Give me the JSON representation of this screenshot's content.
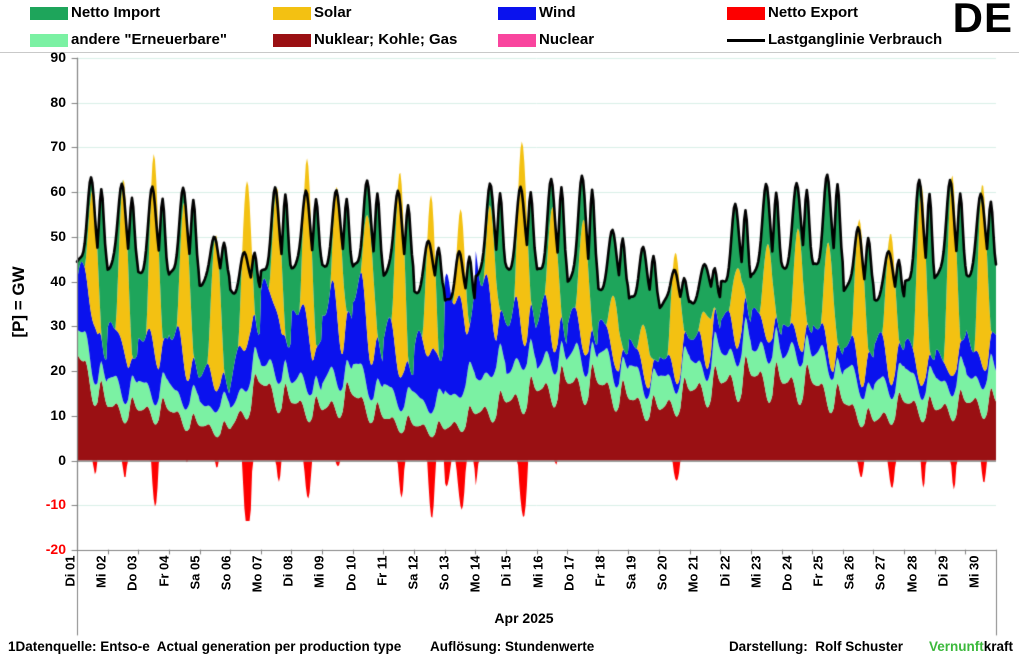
{
  "header": {
    "country_label": "DE"
  },
  "legend": {
    "items": [
      {
        "label": "Netto Import",
        "color": "#1ea55b",
        "type": "box"
      },
      {
        "label": "Solar",
        "color": "#f3c112",
        "type": "box"
      },
      {
        "label": "Wind",
        "color": "#0a12ee",
        "type": "box"
      },
      {
        "label": "Netto Export",
        "color": "#fd0000",
        "type": "box"
      },
      {
        "label": "andere \"Erneuerbare\"",
        "color": "#7bf1a3",
        "type": "box"
      },
      {
        "label": "Nuklear; Kohle; Gas",
        "color": "#9a1013",
        "type": "box"
      },
      {
        "label": "Nuclear",
        "color": "#f9459e",
        "type": "box"
      },
      {
        "label": "Lastganglinie Verbrauch",
        "color": "#000000",
        "type": "line"
      }
    ]
  },
  "chart_data": {
    "type": "area",
    "stacked": true,
    "resolution": "Stundenwerte (hourly values, synthesized from daily estimates read off the plot)",
    "xlabel": "Apr 2025",
    "ylabel": "[P] = GW",
    "ylim": [
      -20,
      90
    ],
    "yticks": [
      90,
      80,
      70,
      60,
      50,
      40,
      30,
      20,
      10,
      0,
      -10,
      -20
    ],
    "grid": true,
    "legend_position": "top",
    "grid_color": "#d9efe7",
    "axis_color": "#808080",
    "negative_tick_color": "#fe0000",
    "x_categories": [
      "Di 01",
      "Mi 02",
      "Do 03",
      "Fr 04",
      "Sa 05",
      "So 06",
      "Mo 07",
      "Di 08",
      "Mi 09",
      "Do 10",
      "Fr 11",
      "Sa 12",
      "So 13",
      "Mo 14",
      "Di 15",
      "Mi 16",
      "Do 17",
      "Fr 18",
      "Sa 19",
      "So 20",
      "Mo 21",
      "Di 22",
      "Mi 23",
      "Do 24",
      "Fr 25",
      "Sa 26",
      "So 27",
      "Mo 28",
      "Di 29",
      "Mi 30"
    ],
    "stack_order_bottom_to_top": [
      "Nuklear; Kohle; Gas",
      "andere \"Erneuerbare\"",
      "Wind",
      "Solar",
      "Netto Import"
    ],
    "load_line_series": "Lastganglinie Verbrauch",
    "below_zero_series": "Netto Export",
    "nuclear_gw": 0,
    "daily_estimates_gw": {
      "load_min": [
        44,
        43,
        42,
        42,
        40,
        38,
        42,
        43,
        43,
        43,
        42,
        38,
        36,
        42,
        43,
        42,
        40,
        38,
        36,
        35,
        36,
        40,
        42,
        43,
        43,
        38,
        36,
        40,
        42,
        42
      ],
      "load_max": [
        63,
        62,
        61,
        60,
        50,
        47,
        61,
        61,
        61,
        62,
        60,
        49,
        46,
        62,
        62,
        63,
        64,
        52,
        47,
        42,
        44,
        57,
        62,
        63,
        64,
        52,
        47,
        62,
        62,
        60
      ],
      "conventional_night": [
        28,
        14,
        13,
        13,
        9,
        8,
        20,
        15,
        13,
        17,
        11,
        9,
        8,
        12,
        15,
        18,
        20,
        20,
        16,
        13,
        18,
        20,
        22,
        20,
        20,
        15,
        10,
        15,
        13,
        15
      ],
      "wind_level": [
        14,
        12,
        10,
        14,
        8,
        6,
        17,
        15,
        16,
        18,
        13,
        10,
        22,
        26,
        12,
        12,
        8,
        6,
        5,
        4,
        5,
        8,
        8,
        6,
        6,
        5,
        10,
        6,
        5,
        8
      ],
      "andere_level": [
        6,
        6,
        6,
        6,
        6,
        6,
        6,
        6,
        7,
        7,
        7,
        7,
        9,
        10,
        9,
        7,
        7,
        7,
        7,
        7,
        7,
        8,
        8,
        8,
        8,
        8,
        8,
        7,
        7,
        7
      ],
      "solar_peak": [
        30,
        38,
        44,
        38,
        35,
        37,
        28,
        37,
        30,
        30,
        46,
        35,
        20,
        22,
        44,
        32,
        30,
        15,
        12,
        29,
        12,
        18,
        22,
        26,
        26,
        36,
        34,
        45,
        45,
        41
      ]
    }
  },
  "footer": {
    "source": "1Datenquelle: Entso-e  Actual generation per production type",
    "resolution": "Auflösung: Stundenwerte",
    "credit": "Darstellung:  Rolf Schuster",
    "brand_green": "Vernunft",
    "brand_black": "kraft",
    "brand_green_color": "#3cb93c"
  }
}
